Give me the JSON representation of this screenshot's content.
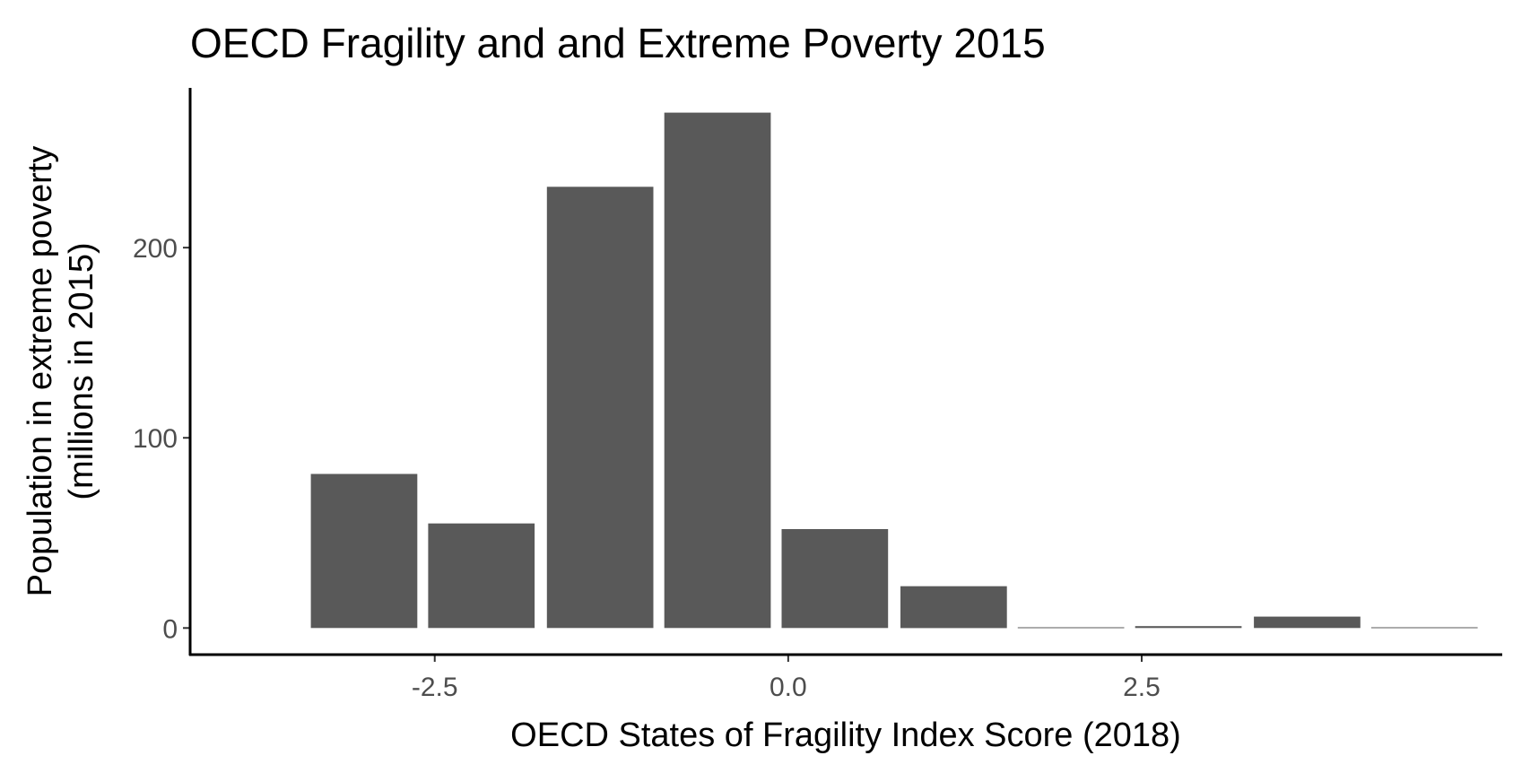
{
  "chart_data": {
    "type": "bar",
    "title": "OECD Fragility and and Extreme Poverty 2015",
    "xlabel": "OECD States of Fragility Index Score (2018)",
    "ylabel_lines": [
      "Population in extreme poverty",
      "(millions in 2015)"
    ],
    "bin_width": 0.833,
    "bins": [
      {
        "x": -3.0,
        "value": 81
      },
      {
        "x": -2.17,
        "value": 55
      },
      {
        "x": -1.33,
        "value": 232
      },
      {
        "x": -0.5,
        "value": 271
      },
      {
        "x": 0.33,
        "value": 52
      },
      {
        "x": 1.17,
        "value": 22
      },
      {
        "x": 2.0,
        "value": 0.4
      },
      {
        "x": 2.83,
        "value": 1
      },
      {
        "x": 3.67,
        "value": 6
      },
      {
        "x": 4.5,
        "value": 0.4
      }
    ],
    "xlim": [
      -4.23,
      5.05
    ],
    "ylim": [
      -14,
      284
    ],
    "xticks": [
      -2.5,
      0.0,
      2.5
    ],
    "xtick_labels": [
      "-2.5",
      "0.0",
      "2.5"
    ],
    "yticks": [
      0,
      100,
      200
    ],
    "ytick_labels": [
      "0",
      "100",
      "200"
    ],
    "grid": false,
    "bar_color": "#595959"
  }
}
